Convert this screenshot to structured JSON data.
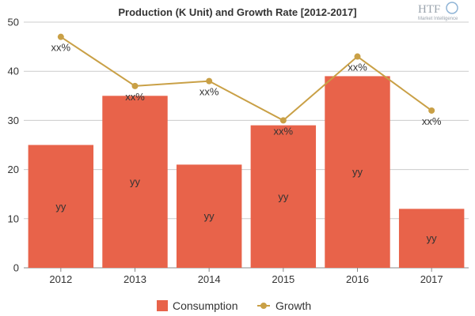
{
  "chart_data": {
    "type": "bar",
    "title": "Production (K Unit) and Growth Rate [2012-2017]",
    "categories": [
      "2012",
      "2013",
      "2014",
      "2015",
      "2016",
      "2017"
    ],
    "ylim": [
      0,
      50
    ],
    "yticks": [
      0,
      10,
      20,
      30,
      40,
      50
    ],
    "grid": true,
    "legend_position": "bottom",
    "series": [
      {
        "name": "Consumption",
        "type": "bar",
        "color": "#e8634a",
        "values": [
          25,
          35,
          21,
          29,
          39,
          12
        ],
        "labels": [
          "yy",
          "yy",
          "yy",
          "yy",
          "yy",
          "yy"
        ]
      },
      {
        "name": "Growth",
        "type": "line",
        "color": "#c9a046",
        "values": [
          47,
          37,
          38,
          30,
          43,
          32
        ],
        "labels": [
          "xx%",
          "xx%",
          "xx%",
          "xx%",
          "xx%",
          "xx%"
        ]
      }
    ]
  },
  "logo": {
    "text": "HTF",
    "subtext": "Market Intelligence"
  }
}
